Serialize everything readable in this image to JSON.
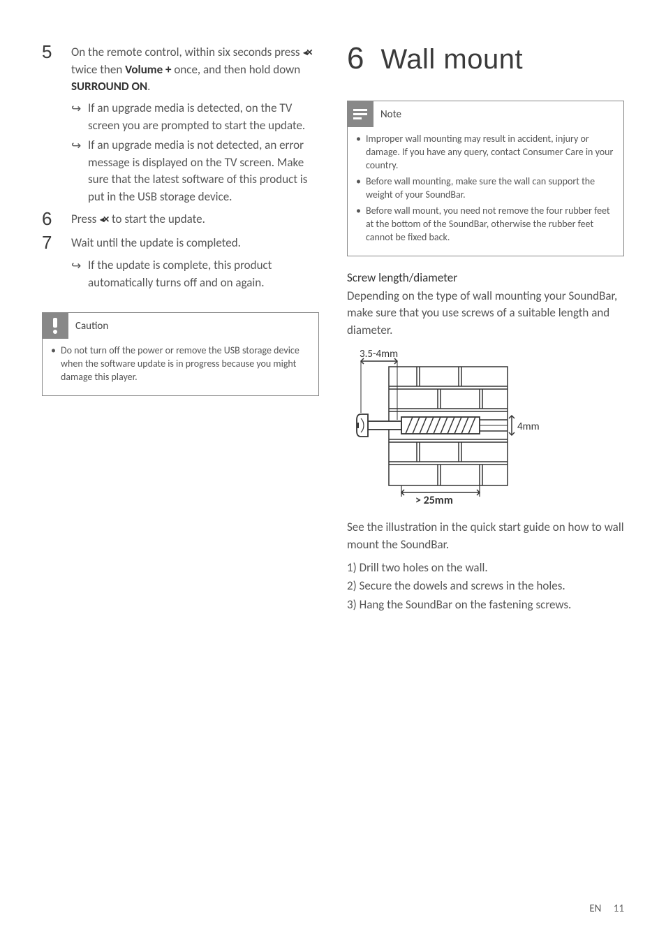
{
  "left": {
    "steps": [
      {
        "num": "5",
        "text_parts": [
          "On the remote control, within six seconds press ",
          "MUTE_ICON",
          " twice then ",
          "BOLD:Volume +",
          " once, and then hold down ",
          "BOLD:SURROUND ON",
          "."
        ],
        "subs": [
          "If an upgrade media is detected, on the TV screen you are prompted to start the update.",
          "If an upgrade media is not detected, an error message is displayed on the TV screen. Make sure that the latest software of this product is put in the USB storage device."
        ]
      },
      {
        "num": "6",
        "text_parts": [
          "Press ",
          "MUTE_ICON",
          " to start the update."
        ],
        "subs": []
      },
      {
        "num": "7",
        "text_parts": [
          "Wait until the update is completed."
        ],
        "subs": [
          "If the update is complete, this product automatically turns off and on again."
        ]
      }
    ],
    "caution": {
      "label": "Caution",
      "items": [
        "Do not turn off the power or remove the USB storage device when the software update is in progress because you might damage this player."
      ]
    }
  },
  "right": {
    "section_num": "6",
    "section_title": "Wall mount",
    "note": {
      "label": "Note",
      "items": [
        "Improper wall mounting may result in accident, injury or damage. If you have any query, contact Consumer Care in your country.",
        "Before wall mounting, make sure the wall can support the weight of your SoundBar.",
        "Before wall mount, you need not remove the four rubber feet at the bottom of the SoundBar, otherwise the rubber feet cannot be fixed back."
      ]
    },
    "screw_heading": "Screw length/diameter",
    "screw_para": "Depending on the type of wall mounting your SoundBar, make sure that you use screws of a suitable length and diameter.",
    "diagram": {
      "head_dim": "3.5-4mm",
      "plug_dim": "4mm",
      "depth_dim": "> 25mm",
      "colors": {
        "stroke": "#333333",
        "fill_bg": "#ffffff"
      }
    },
    "post_diagram": "See the illustration in the quick start guide on how to wall mount the SoundBar.",
    "instructions": [
      "1) Drill two holes on the wall.",
      "2) Secure the dowels and screws in the holes.",
      "3) Hang the SoundBar on the fastening screws."
    ]
  },
  "footer": {
    "lang": "EN",
    "page": "11"
  },
  "icons": {
    "mute_glyph": "◂✕"
  }
}
